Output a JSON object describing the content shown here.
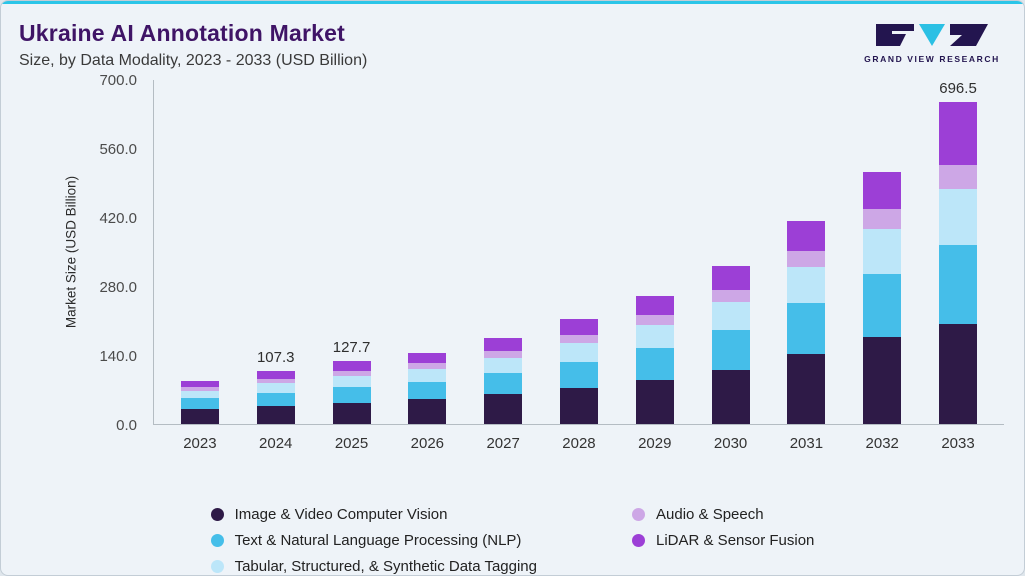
{
  "page": {
    "title": "Ukraine AI Annotation Market",
    "subtitle": "Size, by Data Modality, 2023 - 2033 (USD Billion)",
    "brand": "GRAND VIEW RESEARCH"
  },
  "colors": {
    "accent_line": "#2bc5e8",
    "title_purple": "#3f1466",
    "logo_dark": "#23154f",
    "logo_cyan": "#2bc0e4"
  },
  "chart_data": {
    "type": "bar",
    "stacked": true,
    "title": "Ukraine AI Annotation Market Size, by Data Modality, 2023 - 2033 (USD Billion)",
    "xlabel": "",
    "ylabel": "Market Size (USD Billion)",
    "ylim": [
      0,
      700
    ],
    "ytick_labels": [
      "0.0",
      "140.0",
      "280.0",
      "420.0",
      "560.0",
      "700.0"
    ],
    "grid": false,
    "legend_position": "bottom",
    "categories": [
      "2023",
      "2024",
      "2025",
      "2026",
      "2027",
      "2028",
      "2029",
      "2030",
      "2031",
      "2032",
      "2033"
    ],
    "bar_labels": [
      "",
      "107.3",
      "127.7",
      "",
      "",
      "",
      "",
      "",
      "",
      "",
      "696.5"
    ],
    "totals": [
      87,
      107.3,
      127.7,
      145,
      175,
      213,
      260,
      320,
      412,
      511,
      696.5
    ],
    "series": [
      {
        "name": "Image & Video Computer Vision",
        "color": "#2e1a47",
        "values": [
          30,
          36,
          43,
          50,
          60,
          73,
          89,
          110,
          142,
          176,
          216
        ]
      },
      {
        "name": "Text & Natural Language Processing (NLP)",
        "color": "#45bee9",
        "values": [
          22,
          27,
          32,
          36,
          44,
          53,
          65,
          80,
          103,
          128,
          171
        ]
      },
      {
        "name": "Tabular, Structured, & Synthetic Data Tagging",
        "color": "#bce6f9",
        "values": [
          16,
          20,
          23,
          26,
          31,
          38,
          47,
          57,
          74,
          92,
          122
        ]
      },
      {
        "name": "Audio & Speech",
        "color": "#cda7e6",
        "values": [
          7,
          9,
          10,
          11,
          14,
          17,
          20,
          25,
          32,
          40,
          52
        ]
      },
      {
        "name": "LiDAR & Sensor Fusion",
        "color": "#9c3fd6",
        "values": [
          12,
          15.3,
          19.7,
          22,
          26,
          32,
          39,
          48,
          61,
          75,
          135.5
        ]
      }
    ]
  }
}
